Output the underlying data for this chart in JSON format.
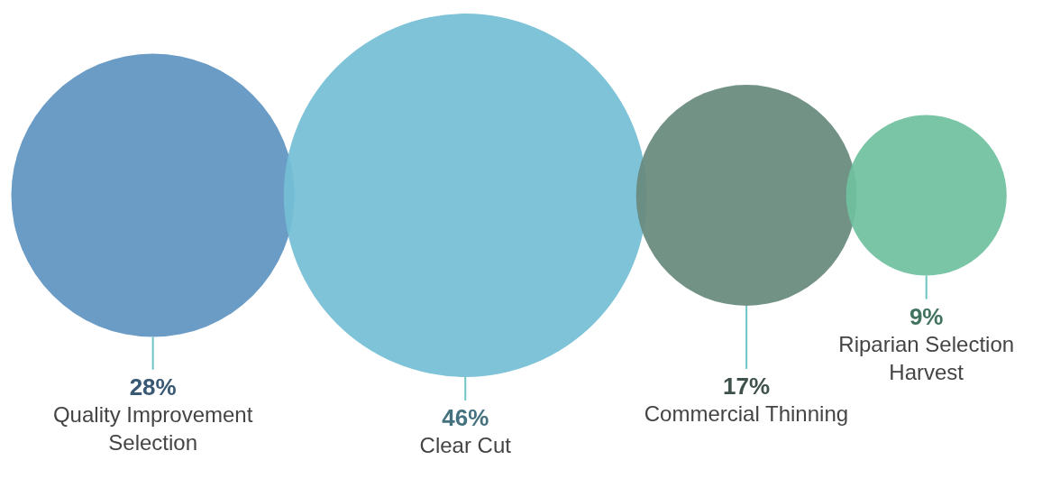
{
  "chart_data": {
    "type": "other",
    "categories": [
      "Quality Improvement Selection",
      "Clear Cut",
      "Commercial Thinning",
      "Riparian Selection Harvest"
    ],
    "values": [
      28,
      46,
      17,
      9
    ],
    "colors": [
      "#6094c2",
      "#74bed4",
      "#688a7d",
      "#6fc19f"
    ],
    "value_labels": [
      "28%",
      "46%",
      "17%",
      "9%"
    ]
  }
}
